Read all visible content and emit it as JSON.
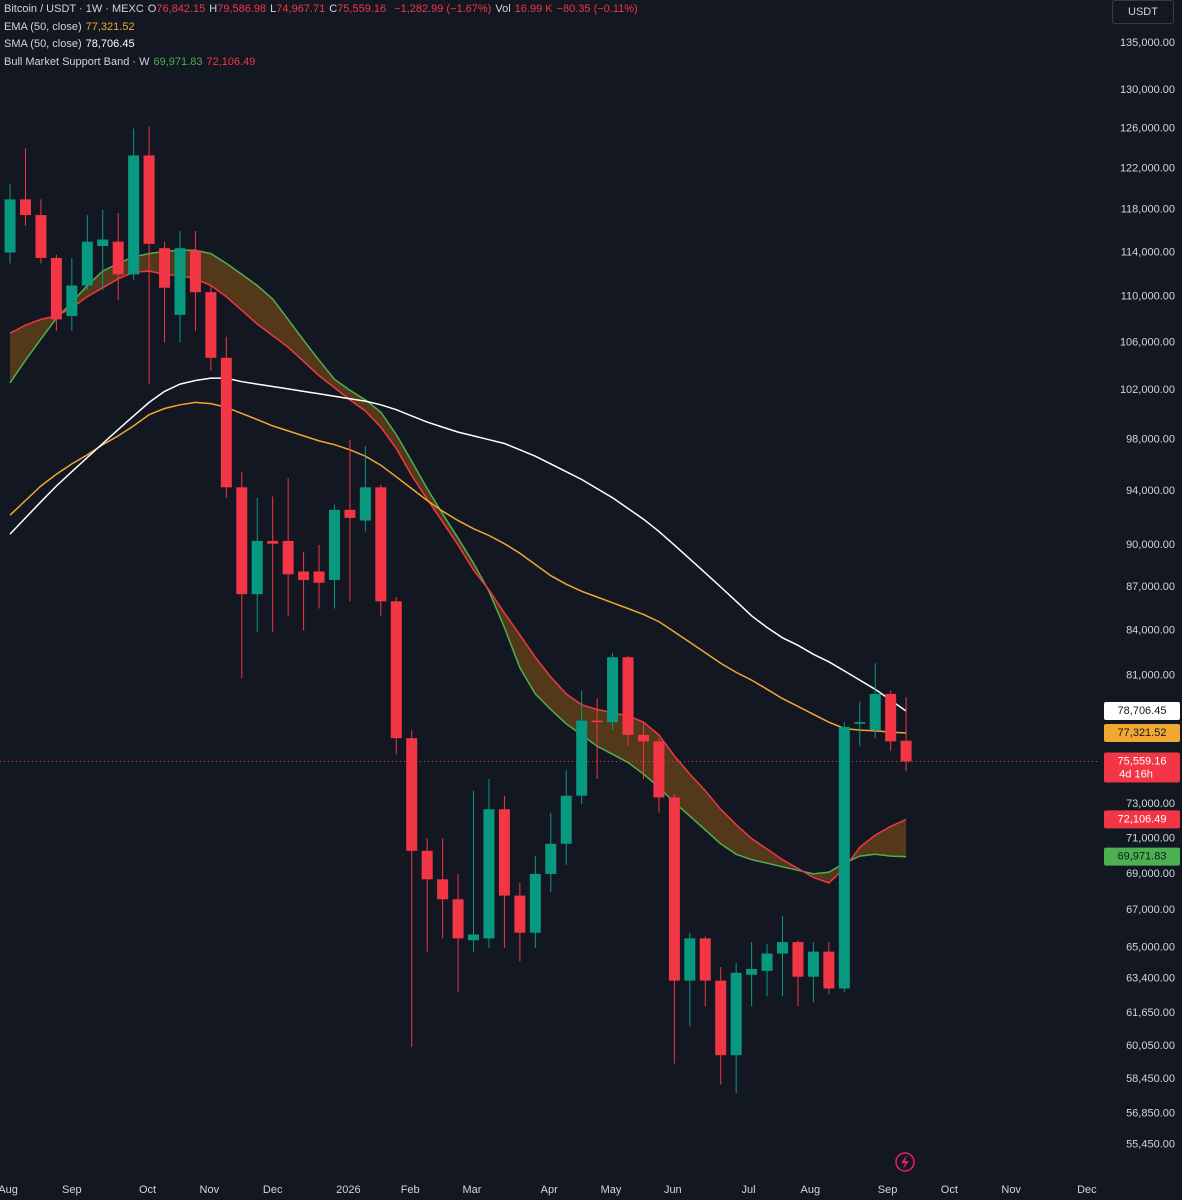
{
  "header": {
    "symbol": "Bitcoin / USDT · 1W · MEXC",
    "ohlc": [
      {
        "key": "O",
        "value": "76,842.15"
      },
      {
        "key": "H",
        "value": "79,586.98"
      },
      {
        "key": "L",
        "value": "74,967.71"
      },
      {
        "key": "C",
        "value": "75,559.16"
      }
    ],
    "change": "−1,282.99 (−1.67%)",
    "volume_key": "Vol",
    "volume": "16.99 K",
    "volume_change": "−80.35 (−0.11%)",
    "currency": "USDT"
  },
  "chart_data": {
    "type": "candlestick",
    "ylog": true,
    "grid": false,
    "ylim": [
      54100,
      139800
    ],
    "xlim": [
      -0.65,
      70.55
    ],
    "yticks": [
      {
        "value": 135000,
        "label": "135,000.00"
      },
      {
        "value": 130000,
        "label": "130,000.00"
      },
      {
        "value": 126000,
        "label": "126,000.00"
      },
      {
        "value": 122000,
        "label": "122,000.00"
      },
      {
        "value": 118000,
        "label": "118,000.00"
      },
      {
        "value": 114000,
        "label": "114,000.00"
      },
      {
        "value": 110000,
        "label": "110,000.00"
      },
      {
        "value": 106000,
        "label": "106,000.00"
      },
      {
        "value": 102000,
        "label": "102,000.00"
      },
      {
        "value": 98000,
        "label": "98,000.00"
      },
      {
        "value": 94000,
        "label": "94,000.00"
      },
      {
        "value": 90000,
        "label": "90,000.00"
      },
      {
        "value": 87000,
        "label": "87,000.00"
      },
      {
        "value": 84000,
        "label": "84,000.00"
      },
      {
        "value": 81000,
        "label": "81,000.00"
      },
      {
        "value": 73000,
        "label": "73,000.00"
      },
      {
        "value": 71000,
        "label": "71,000.00"
      },
      {
        "value": 69000,
        "label": "69,000.00"
      },
      {
        "value": 67000,
        "label": "67,000.00"
      },
      {
        "value": 65000,
        "label": "65,000.00"
      },
      {
        "value": 63400,
        "label": "63,400.00"
      },
      {
        "value": 61650,
        "label": "61,650.00"
      },
      {
        "value": 60050,
        "label": "60,050.00"
      },
      {
        "value": 58450,
        "label": "58,450.00"
      },
      {
        "value": 56850,
        "label": "56,850.00"
      },
      {
        "value": 55450,
        "label": "55,450.00"
      }
    ],
    "xticks": [
      {
        "value": -0.13,
        "label": "Aug"
      },
      {
        "value": 4.0,
        "label": "Sep"
      },
      {
        "value": 8.9,
        "label": "Oct"
      },
      {
        "value": 12.9,
        "label": "Nov"
      },
      {
        "value": 17.0,
        "label": "Dec"
      },
      {
        "value": 21.9,
        "label": "2026"
      },
      {
        "value": 25.9,
        "label": "Feb"
      },
      {
        "value": 29.9,
        "label": "Mar"
      },
      {
        "value": 34.9,
        "label": "Apr"
      },
      {
        "value": 38.9,
        "label": "May"
      },
      {
        "value": 42.9,
        "label": "Jun"
      },
      {
        "value": 47.8,
        "label": "Jul"
      },
      {
        "value": 51.8,
        "label": "Aug"
      },
      {
        "value": 56.8,
        "label": "Sep"
      },
      {
        "value": 60.8,
        "label": "Oct"
      },
      {
        "value": 64.8,
        "label": "Nov"
      },
      {
        "value": 69.7,
        "label": "Dec"
      }
    ],
    "candles": {
      "up_color": "#089981",
      "down_color": "#f23645",
      "open": [
        114000,
        119000,
        117500,
        113500,
        108300,
        111000,
        114600,
        115000,
        112000,
        123300,
        114400,
        108400,
        114200,
        110400,
        104700,
        94300,
        86500,
        90300,
        90300,
        88100,
        88100,
        87500,
        92600,
        91800,
        94300,
        86000,
        77000,
        70300,
        68700,
        67600,
        65400,
        65500,
        72700,
        67800,
        65800,
        69000,
        70700,
        73500,
        78100,
        78000,
        82200,
        77200,
        76800,
        73400,
        63300,
        65500,
        63300,
        59600,
        63600,
        63800,
        64700,
        65300,
        63500,
        64800,
        62900,
        77900,
        77500,
        79800,
        76842.15
      ],
      "high": [
        120500,
        124000,
        119000,
        113800,
        113500,
        117500,
        118000,
        117700,
        126000,
        126200,
        115000,
        116000,
        116000,
        111000,
        106500,
        95500,
        93500,
        93600,
        95000,
        89500,
        90000,
        93000,
        98000,
        97500,
        94500,
        86300,
        77500,
        71000,
        71000,
        69000,
        73800,
        74500,
        73500,
        68500,
        70000,
        72500,
        75000,
        80000,
        79500,
        82500,
        82300,
        78000,
        77000,
        73600,
        65800,
        65600,
        64000,
        64200,
        65300,
        65200,
        66700,
        65400,
        65300,
        65300,
        78000,
        79300,
        81800,
        80000,
        79586.98
      ],
      "low": [
        113000,
        116500,
        113000,
        107000,
        107000,
        110600,
        110600,
        109700,
        111500,
        102500,
        106000,
        106000,
        107000,
        103600,
        93500,
        80800,
        83900,
        83900,
        85000,
        84000,
        85500,
        85500,
        86000,
        91000,
        85000,
        76000,
        60000,
        64800,
        65500,
        62700,
        64800,
        65000,
        65000,
        64300,
        65000,
        68000,
        69500,
        73000,
        74500,
        77500,
        76500,
        74500,
        72500,
        59200,
        61000,
        62000,
        58200,
        57800,
        62000,
        62500,
        62500,
        62000,
        62200,
        62600,
        62700,
        76500,
        77000,
        76200,
        74967.71
      ],
      "close": [
        119000,
        117500,
        113500,
        108000,
        111000,
        115000,
        115200,
        112000,
        123300,
        114800,
        110800,
        114400,
        110400,
        104700,
        94300,
        86500,
        90300,
        90100,
        87900,
        87500,
        87300,
        92600,
        92000,
        94300,
        86000,
        77000,
        70300,
        68700,
        67600,
        65500,
        65700,
        72700,
        67800,
        65800,
        69000,
        70700,
        73500,
        78100,
        78000,
        82200,
        77200,
        76800,
        73400,
        63300,
        65500,
        63300,
        59600,
        63700,
        63900,
        64700,
        65300,
        63500,
        64800,
        62900,
        77700,
        78000,
        79800,
        76800,
        75559.16
      ],
      "close_label": "75,559.16",
      "countdown": "4d 16h"
    },
    "band": {
      "name": "Bull Market Support Band · W",
      "fill": "#6b4418",
      "lower": {
        "color": "#4caf50",
        "last_label": "69,971.83",
        "values": [
          102600,
          104500,
          106300,
          108100,
          109500,
          111000,
          112300,
          113000,
          113600,
          113900,
          114100,
          114200,
          114200,
          113900,
          113000,
          112000,
          111000,
          109800,
          108000,
          106200,
          104500,
          102900,
          102000,
          101200,
          100200,
          98400,
          96300,
          94200,
          92300,
          90500,
          88700,
          86700,
          84200,
          81500,
          79800,
          78800,
          77900,
          77200,
          76500,
          76000,
          75500,
          74800,
          74000,
          73100,
          72300,
          71500,
          70700,
          70100,
          69800,
          69600,
          69400,
          69200,
          69000,
          69100,
          69600,
          70000,
          70100,
          70000,
          69971.83
        ]
      },
      "upper": {
        "color": "#f23645",
        "last_label": "72,106.49",
        "values": [
          106800,
          107500,
          108000,
          108300,
          109000,
          110000,
          110800,
          111600,
          112200,
          112300,
          112000,
          111900,
          111600,
          111000,
          110000,
          108800,
          107600,
          106600,
          105600,
          104400,
          103200,
          102200,
          101200,
          100300,
          99000,
          97300,
          95200,
          93400,
          91700,
          90000,
          88200,
          86800,
          85200,
          83700,
          82200,
          80900,
          79800,
          79100,
          78800,
          78600,
          78400,
          78000,
          77200,
          75900,
          74800,
          73800,
          72700,
          71800,
          71000,
          70400,
          69800,
          69300,
          68800,
          68500,
          69300,
          70500,
          71200,
          71700,
          72106.49
        ]
      }
    },
    "series": [
      {
        "name": "EMA (50, close)",
        "color": "#f0a830",
        "last_label": "77,321.52",
        "values": [
          92200,
          93300,
          94400,
          95300,
          96100,
          96800,
          97600,
          98300,
          99100,
          100000,
          100500,
          100800,
          101000,
          100900,
          100600,
          100100,
          99600,
          99100,
          98700,
          98300,
          97900,
          97600,
          97200,
          96700,
          96000,
          95100,
          94200,
          93300,
          92500,
          91800,
          91200,
          90700,
          90100,
          89400,
          88600,
          87800,
          87200,
          86700,
          86300,
          85900,
          85500,
          85100,
          84600,
          83900,
          83200,
          82500,
          81800,
          81200,
          80700,
          80100,
          79500,
          79000,
          78500,
          78000,
          77600,
          77500,
          77450,
          77380,
          77321.52
        ]
      },
      {
        "name": "SMA (50, close)",
        "color": "#ffffff",
        "last_label": "78,706.45",
        "values": [
          90800,
          92000,
          93200,
          94400,
          95500,
          96600,
          97700,
          98800,
          99900,
          101000,
          101900,
          102500,
          102800,
          103000,
          103000,
          102700,
          102500,
          102300,
          102100,
          101900,
          101700,
          101500,
          101300,
          101100,
          100800,
          100400,
          99900,
          99400,
          99000,
          98600,
          98300,
          98000,
          97700,
          97200,
          96700,
          96100,
          95500,
          94900,
          94200,
          93500,
          92700,
          91900,
          91000,
          90000,
          89000,
          88000,
          87000,
          86000,
          85000,
          84200,
          83500,
          83000,
          82400,
          81900,
          81300,
          80700,
          80100,
          79400,
          78706.45
        ]
      }
    ]
  }
}
